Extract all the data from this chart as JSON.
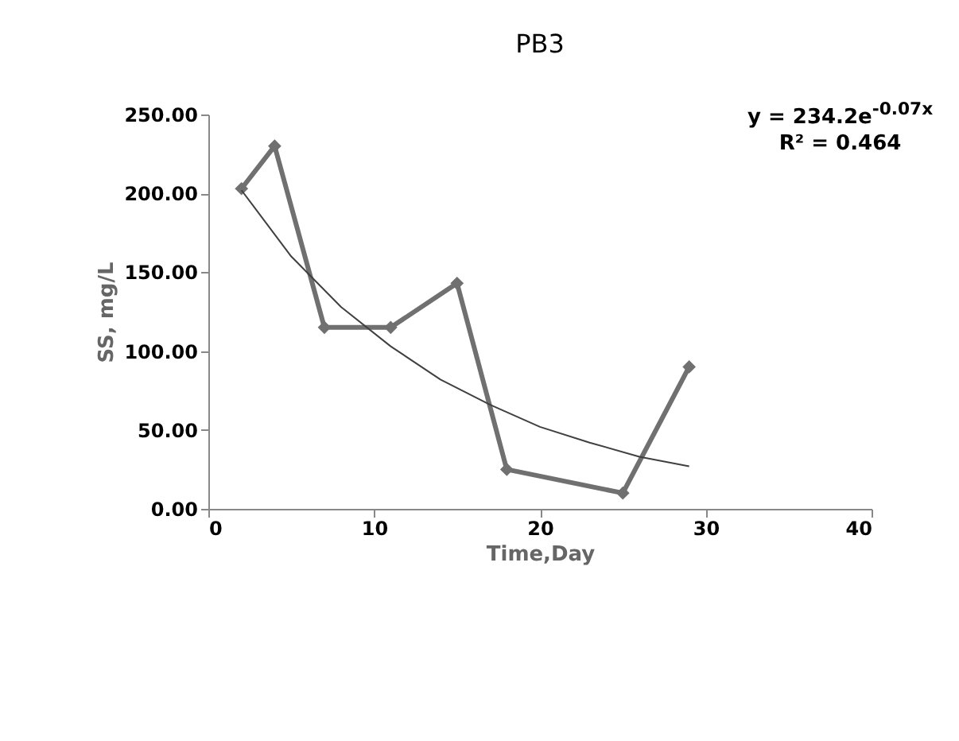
{
  "chart_data": {
    "type": "line",
    "title": "PB3",
    "xlabel": "Time,Day",
    "ylabel": "SS, mg/L",
    "x": [
      2,
      4,
      7,
      11,
      15,
      18,
      25,
      29
    ],
    "series": [
      {
        "color": "#707070",
        "marker": "diamond",
        "values": [
          203,
          230,
          115,
          115,
          143,
          25,
          10,
          90
        ]
      },
      {
        "type": "line",
        "color": "#404040",
        "marker": "none",
        "x": [
          2,
          5,
          8,
          11,
          14,
          17,
          20,
          23,
          26,
          29
        ],
        "values": [
          202,
          160,
          128,
          103,
          82,
          66,
          52,
          42,
          33,
          27
        ]
      }
    ],
    "grid": false,
    "xlim": [
      0,
      40
    ],
    "xticks": [
      0,
      10,
      20,
      30,
      40
    ],
    "ylim": [
      0,
      250
    ],
    "yticks": [
      {
        "value": 0,
        "label": "0.00"
      },
      {
        "value": 50,
        "label": "50.00"
      },
      {
        "value": 100,
        "label": "100.00"
      },
      {
        "value": 150,
        "label": "150.00"
      },
      {
        "value": 200,
        "label": "200.00"
      },
      {
        "value": 250,
        "label": "250.00"
      }
    ],
    "annotations": [
      "y = 234.2e$^{-0.07x}$",
      "R² = 0.464"
    ]
  }
}
